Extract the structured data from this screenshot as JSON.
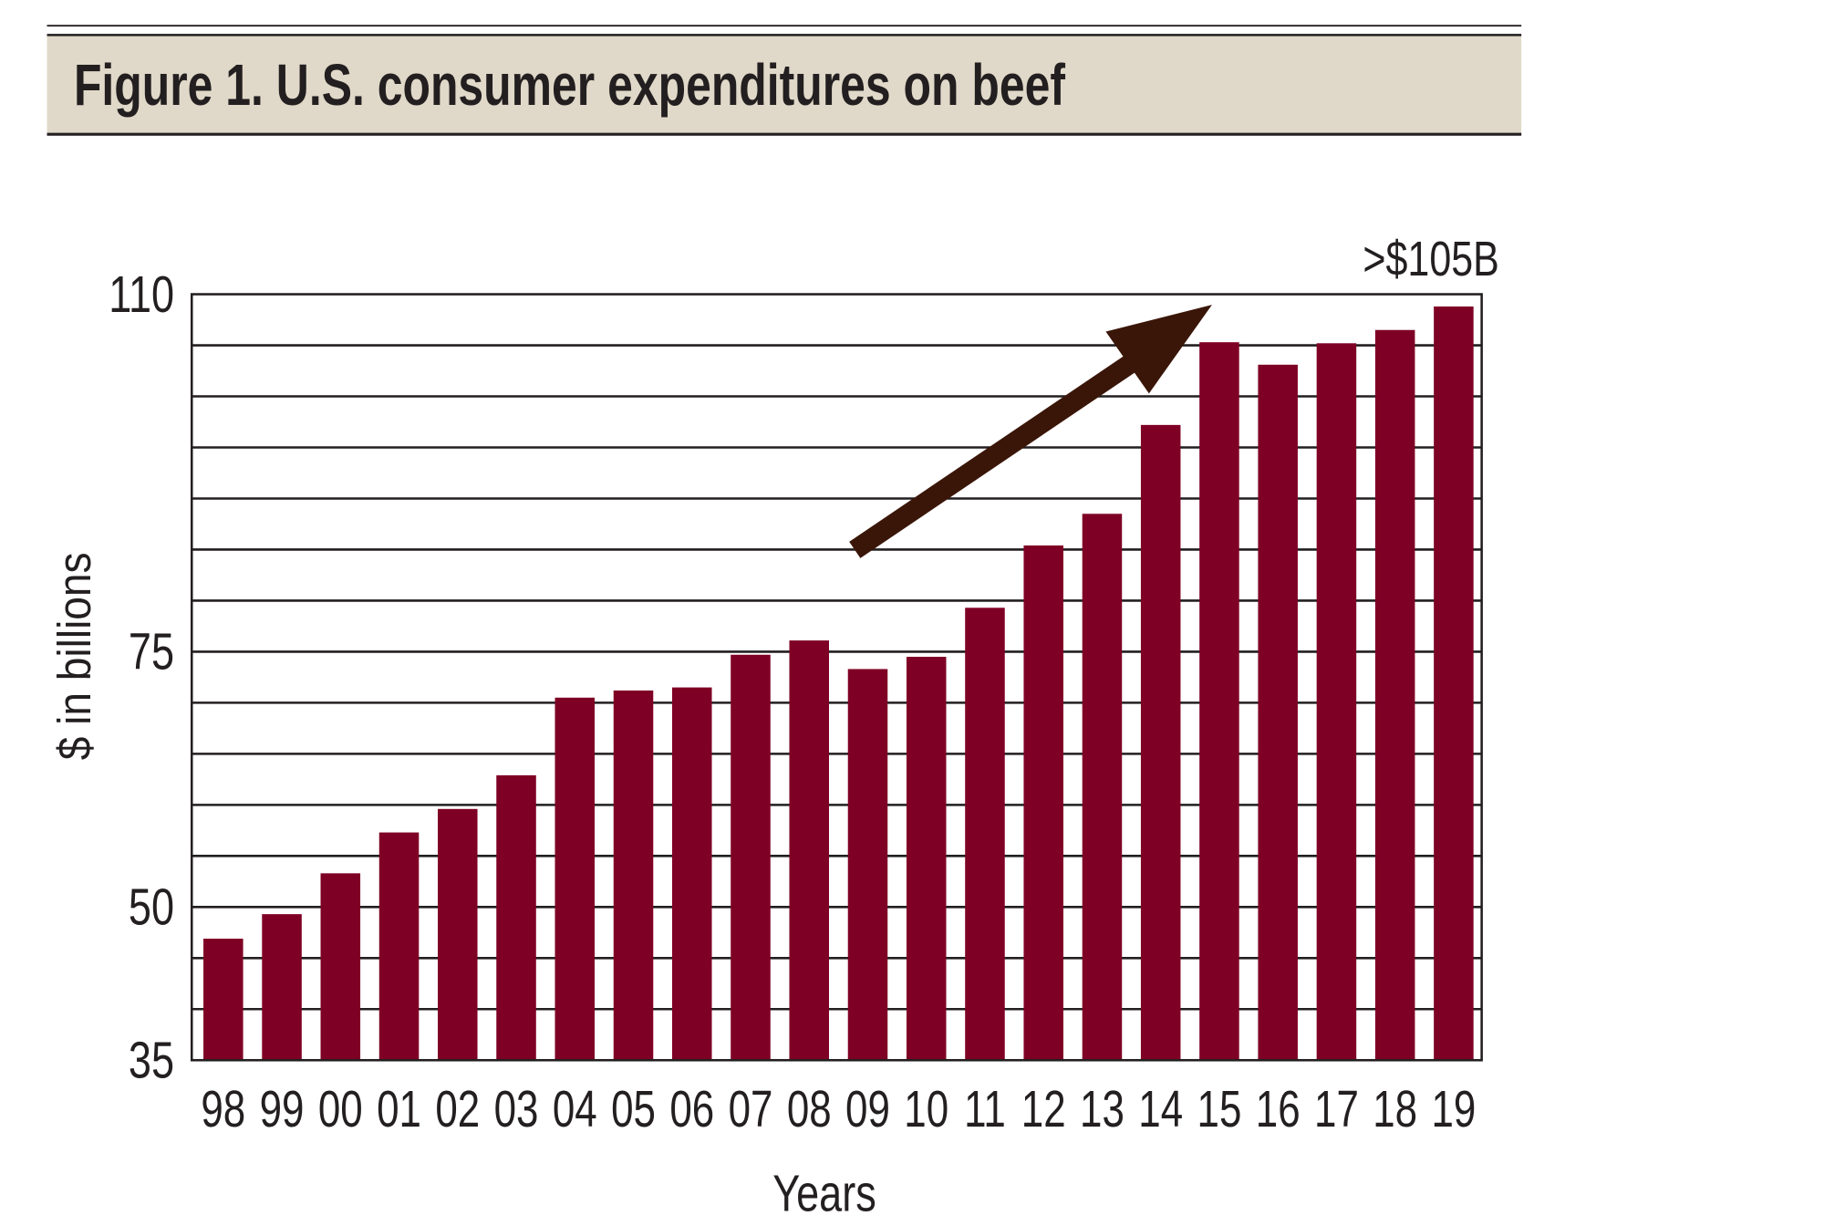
{
  "chart_data": {
    "type": "bar",
    "title": "Figure 1. U.S. consumer expenditures on beef",
    "xlabel": "Years",
    "ylabel": "$ in billions",
    "annotation": ">$105B",
    "categories": [
      "98",
      "99",
      "00",
      "01",
      "02",
      "03",
      "04",
      "05",
      "06",
      "07",
      "08",
      "09",
      "10",
      "11",
      "12",
      "13",
      "14",
      "15",
      "16",
      "17",
      "18",
      "19"
    ],
    "values": [
      46.9,
      49.3,
      53.3,
      57.3,
      59.6,
      62.9,
      70.5,
      71.2,
      71.5,
      74.7,
      76.1,
      73.3,
      74.5,
      79.3,
      85.4,
      88.5,
      97.2,
      105.3,
      103.1,
      105.2,
      106.5,
      108.8
    ],
    "ylim": [
      35,
      110
    ],
    "yticks": [
      35,
      50,
      75,
      110
    ],
    "ytick_labels": [
      "35",
      "50",
      "75",
      "110"
    ],
    "grid": true,
    "grid_step": 5,
    "trend_arrow": true,
    "colors": {
      "bar": "#7f0025",
      "arrow": "#3a1608",
      "title_band": "#e0d9c9",
      "text": "#231f20"
    }
  }
}
